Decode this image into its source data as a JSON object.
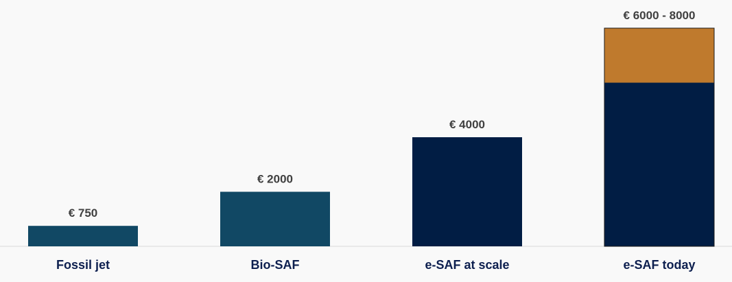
{
  "chart_data": {
    "type": "bar",
    "stacked": true,
    "categories": [
      "Fossil jet",
      "Bio-SAF",
      "e-SAF at scale",
      "e-SAF today"
    ],
    "series": [
      {
        "values": [
          750,
          2000,
          4000,
          6000
        ],
        "colors": [
          "#114864",
          "#114864",
          "#011d44",
          "#011d44"
        ]
      },
      {
        "values": [
          0,
          0,
          0,
          2000
        ],
        "colors": [
          "#bf7a2d",
          "#bf7a2d",
          "#bf7a2d",
          "#bf7a2d"
        ]
      }
    ],
    "data_labels": [
      "€ 750",
      "€ 2000",
      "€ 4000",
      "€ 6000 - 8000"
    ],
    "ylim": [
      0,
      8000
    ],
    "grid": false,
    "legend": "none",
    "axis_line_color": "#d9d9d9"
  }
}
